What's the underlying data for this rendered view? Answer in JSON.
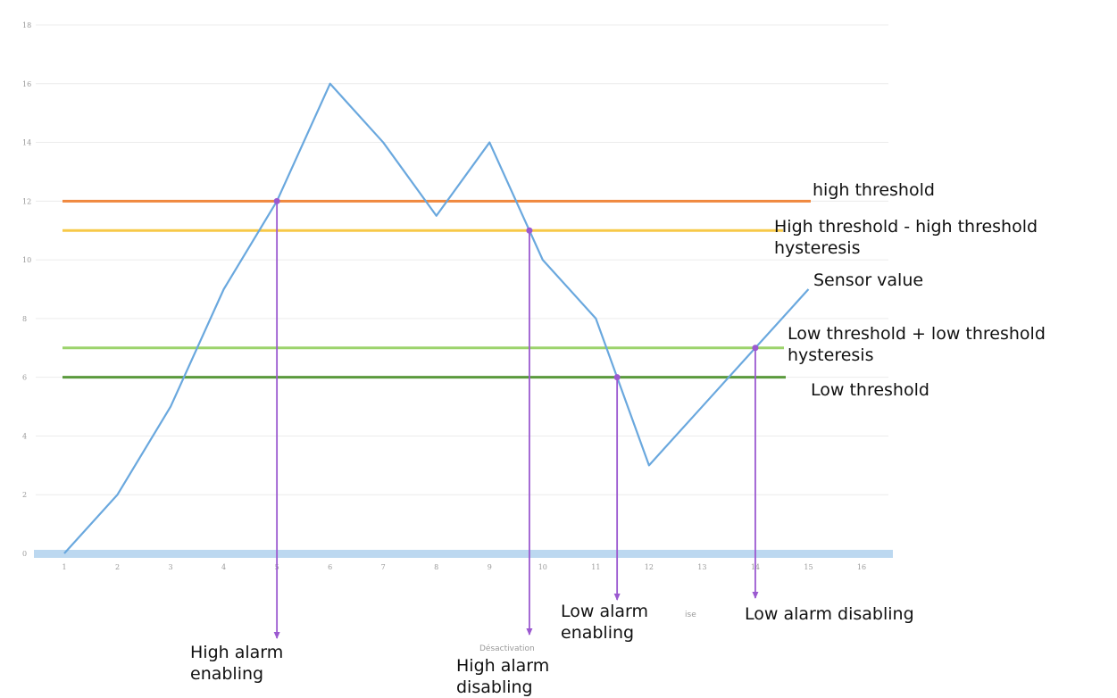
{
  "chart_data": {
    "type": "line",
    "x": [
      1,
      2,
      3,
      4,
      5,
      6,
      7,
      8,
      9,
      10,
      11,
      12,
      13,
      14,
      15
    ],
    "series": [
      {
        "name": "Sensor value",
        "values": [
          0,
          2,
          5,
          9,
          12,
          16,
          14,
          11.5,
          14,
          10,
          8,
          3,
          5,
          7,
          9
        ],
        "color": "#6aa8de"
      }
    ],
    "x_ticks": [
      "1",
      "2",
      "3",
      "4",
      "5",
      "6",
      "7",
      "8",
      "9",
      "10",
      "11",
      "12",
      "13",
      "14",
      "15",
      "16"
    ],
    "y_ticks": [
      "0",
      "2",
      "4",
      "6",
      "8",
      "10",
      "12",
      "14",
      "16",
      "18"
    ],
    "xlim": [
      1,
      16
    ],
    "ylim": [
      0,
      18
    ],
    "grid": true,
    "thresholds": [
      {
        "label": "high threshold",
        "value": 12,
        "color": "#f0883e"
      },
      {
        "label": "High threshold - high threshold\nhysteresis",
        "value": 11,
        "color": "#f7c948"
      },
      {
        "label": "Low threshold + low threshold\nhysteresis",
        "value": 7,
        "color": "#9bd36b"
      },
      {
        "label": "Low threshold",
        "value": 6,
        "color": "#5a9a3c"
      }
    ],
    "events": [
      {
        "label": "High alarm\nenabling",
        "x": 5,
        "y": 12
      },
      {
        "label": "High alarm\ndisabling",
        "x": 9.75,
        "y": 11
      },
      {
        "label": "Low alarm\nenabling",
        "x": 11.4,
        "y": 6
      },
      {
        "label": "Low alarm disabling",
        "x": 14,
        "y": 7
      }
    ],
    "series_label": "Sensor value",
    "event_color": "#9b59d0",
    "baseline_color": "#bcd8f0"
  },
  "faint_text": {
    "left": "Désactivation",
    "right": "ise"
  }
}
